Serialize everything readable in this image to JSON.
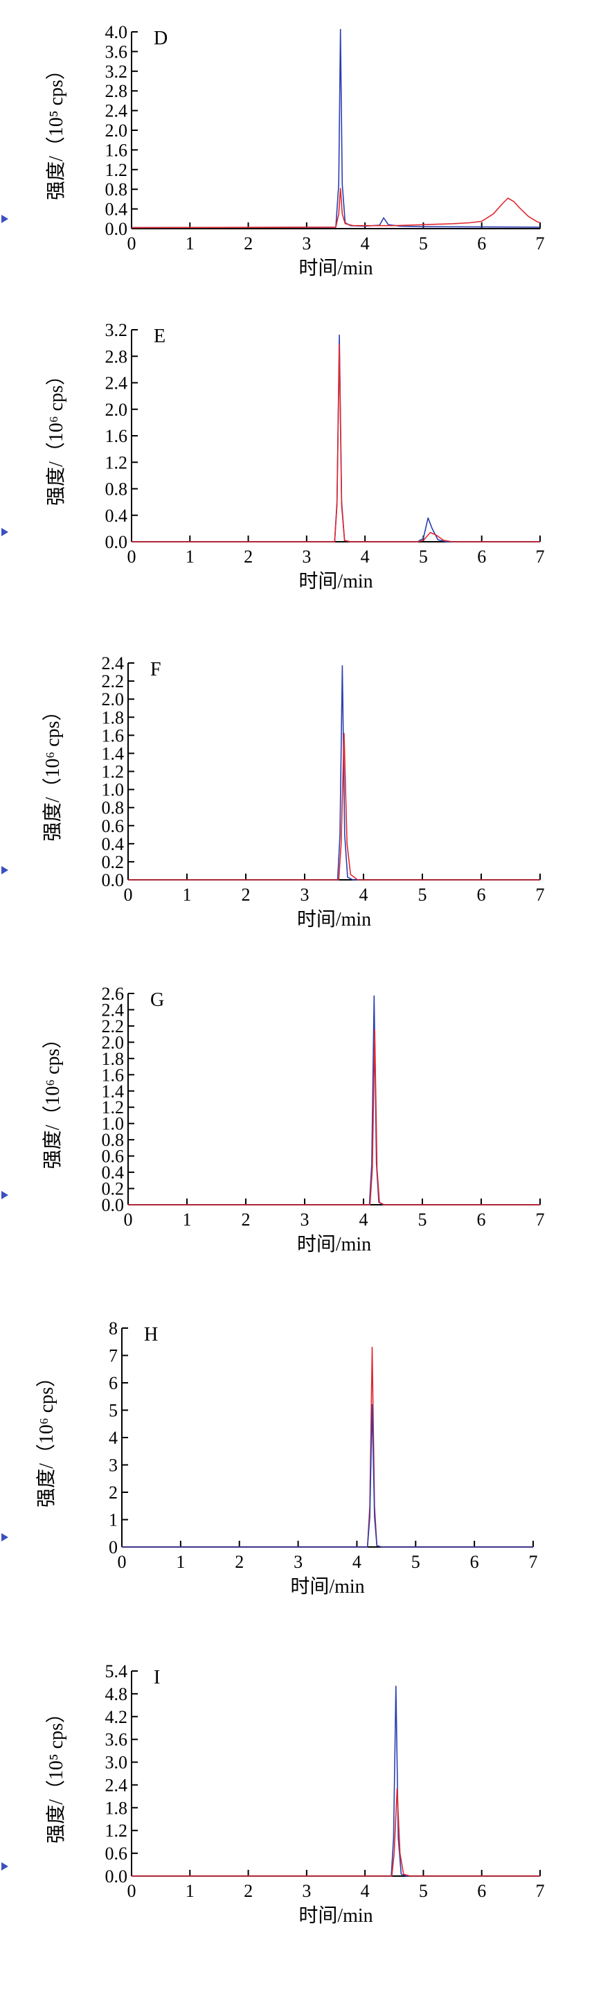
{
  "colors": {
    "blue": "#2b3fb0",
    "red": "#e0282e",
    "axis": "#000000",
    "marker": "#3a4fc0"
  },
  "charts": [
    {
      "id": "D",
      "chart_data": {
        "type": "line",
        "panel_label": "D",
        "xlabel": "时间/min",
        "ylabel": "强度/（10⁵ cps）",
        "xlim": [
          0,
          7
        ],
        "ylim": [
          0,
          4.0
        ],
        "xticks": [
          "0",
          "1",
          "2",
          "3",
          "4",
          "5",
          "6",
          "7"
        ],
        "yticks": [
          "0.0",
          "0.4",
          "0.8",
          "1.2",
          "1.6",
          "2.0",
          "2.4",
          "2.8",
          "3.2",
          "3.6",
          "4.0"
        ],
        "series": [
          {
            "color": "blue",
            "x": [
              0,
              3.5,
              3.55,
              3.58,
              3.61,
              3.66,
              3.75,
              4.0,
              4.25,
              4.32,
              4.4,
              4.6,
              5.0,
              7.0
            ],
            "y": [
              0.02,
              0.03,
              0.9,
              4.05,
              0.9,
              0.12,
              0.06,
              0.05,
              0.07,
              0.22,
              0.08,
              0.05,
              0.04,
              0.03
            ]
          },
          {
            "color": "red",
            "x": [
              0,
              3.5,
              3.55,
              3.58,
              3.61,
              3.66,
              3.8,
              4.0,
              4.5,
              5.0,
              5.5,
              5.8,
              6.0,
              6.2,
              6.35,
              6.45,
              6.55,
              6.65,
              6.8,
              6.95,
              7.0
            ],
            "y": [
              0.02,
              0.03,
              0.3,
              0.82,
              0.3,
              0.1,
              0.06,
              0.06,
              0.06,
              0.08,
              0.1,
              0.12,
              0.15,
              0.3,
              0.5,
              0.62,
              0.55,
              0.42,
              0.25,
              0.14,
              0.12
            ]
          }
        ]
      }
    },
    {
      "id": "E",
      "chart_data": {
        "type": "line",
        "panel_label": "E",
        "xlabel": "时间/min",
        "ylabel": "强度/（10⁶ cps）",
        "xlim": [
          0,
          7
        ],
        "ylim": [
          0,
          3.2
        ],
        "xticks": [
          "0",
          "1",
          "2",
          "3",
          "4",
          "5",
          "6",
          "7"
        ],
        "yticks": [
          "0.0",
          "0.4",
          "0.8",
          "1.2",
          "1.6",
          "2.0",
          "2.4",
          "2.8",
          "3.2"
        ],
        "series": [
          {
            "color": "blue",
            "x": [
              0,
              3.48,
              3.52,
              3.56,
              3.6,
              3.65,
              3.75,
              4.9,
              5.0,
              5.08,
              5.15,
              5.25,
              5.4,
              7.0
            ],
            "y": [
              0,
              0,
              0.6,
              3.12,
              0.6,
              0.02,
              0,
              0,
              0.05,
              0.36,
              0.2,
              0.03,
              0,
              0
            ]
          },
          {
            "color": "red",
            "x": [
              0,
              3.48,
              3.52,
              3.56,
              3.6,
              3.65,
              3.75,
              4.9,
              5.0,
              5.12,
              5.22,
              5.35,
              5.5,
              7.0
            ],
            "y": [
              0,
              0,
              0.55,
              2.98,
              0.55,
              0.02,
              0,
              0,
              0.02,
              0.14,
              0.1,
              0.02,
              0,
              0
            ]
          }
        ]
      }
    },
    {
      "id": "F",
      "chart_data": {
        "type": "line",
        "panel_label": "F",
        "xlabel": "时间/min",
        "ylabel": "强度/（10⁶ cps）",
        "xlim": [
          0,
          7
        ],
        "ylim": [
          0,
          2.4
        ],
        "xticks": [
          "0",
          "1",
          "2",
          "3",
          "4",
          "5",
          "6",
          "7"
        ],
        "yticks": [
          "0.0",
          "0.2",
          "0.4",
          "0.6",
          "0.8",
          "1.0",
          "1.2",
          "1.4",
          "1.6",
          "1.8",
          "2.0",
          "2.2",
          "2.4"
        ],
        "series": [
          {
            "color": "blue",
            "x": [
              0,
              3.56,
              3.6,
              3.64,
              3.68,
              3.73,
              3.82,
              7.0
            ],
            "y": [
              0,
              0,
              0.5,
              2.37,
              0.5,
              0.03,
              0,
              0
            ]
          },
          {
            "color": "red",
            "x": [
              0,
              3.58,
              3.62,
              3.67,
              3.72,
              3.78,
              3.9,
              7.0
            ],
            "y": [
              0,
              0,
              0.4,
              1.62,
              0.4,
              0.06,
              0,
              0
            ]
          }
        ]
      }
    },
    {
      "id": "G",
      "chart_data": {
        "type": "line",
        "panel_label": "G",
        "xlabel": "时间/min",
        "ylabel": "强度/（10⁶ cps）",
        "xlim": [
          0,
          7
        ],
        "ylim": [
          0,
          2.6
        ],
        "xticks": [
          "0",
          "1",
          "2",
          "3",
          "4",
          "5",
          "6",
          "7"
        ],
        "yticks": [
          "0.0",
          "0.2",
          "0.4",
          "0.6",
          "0.8",
          "1.0",
          "1.2",
          "1.4",
          "1.6",
          "1.8",
          "2.0",
          "2.2",
          "2.4",
          "2.6"
        ],
        "series": [
          {
            "color": "blue",
            "x": [
              0,
              4.1,
              4.14,
              4.18,
              4.22,
              4.26,
              4.34,
              7.0
            ],
            "y": [
              0,
              0,
              0.5,
              2.57,
              0.5,
              0.03,
              0,
              0
            ]
          },
          {
            "color": "red",
            "x": [
              0,
              4.11,
              4.15,
              4.19,
              4.23,
              4.27,
              4.35,
              7.0
            ],
            "y": [
              0,
              0,
              0.45,
              2.15,
              0.45,
              0.03,
              0,
              0
            ]
          }
        ]
      }
    },
    {
      "id": "H",
      "chart_data": {
        "type": "line",
        "panel_label": "H",
        "xlabel": "时间/min",
        "ylabel": "强度/（10⁶ cps）",
        "xlim": [
          0,
          7
        ],
        "ylim": [
          0,
          8
        ],
        "xticks": [
          "0",
          "1",
          "2",
          "3",
          "4",
          "5",
          "6",
          "7"
        ],
        "yticks": [
          "0",
          "1",
          "2",
          "3",
          "4",
          "5",
          "6",
          "7",
          "8"
        ],
        "series": [
          {
            "color": "red",
            "x": [
              0,
              4.18,
              4.22,
              4.26,
              4.3,
              4.34,
              4.42,
              7.0
            ],
            "y": [
              0,
              0,
              1.5,
              7.3,
              1.5,
              0.05,
              0,
              0
            ]
          },
          {
            "color": "blue",
            "x": [
              0,
              4.18,
              4.22,
              4.26,
              4.3,
              4.34,
              4.42,
              7.0
            ],
            "y": [
              0,
              0,
              1.1,
              5.2,
              1.1,
              0.05,
              0,
              0
            ]
          }
        ]
      }
    },
    {
      "id": "I",
      "chart_data": {
        "type": "line",
        "panel_label": "I",
        "xlabel": "时间/min",
        "ylabel": "强度/（10⁵ cps）",
        "xlim": [
          0,
          7
        ],
        "ylim": [
          0,
          5.4
        ],
        "xticks": [
          "0",
          "1",
          "2",
          "3",
          "4",
          "5",
          "6",
          "7"
        ],
        "yticks": [
          "0.0",
          "0.6",
          "1.2",
          "1.8",
          "2.4",
          "3.0",
          "3.6",
          "4.2",
          "4.8",
          "5.4"
        ],
        "series": [
          {
            "color": "blue",
            "x": [
              0,
              4.45,
              4.49,
              4.53,
              4.57,
              4.62,
              4.72,
              7.0
            ],
            "y": [
              0,
              0,
              1.0,
              5.0,
              1.0,
              0.05,
              0,
              0
            ]
          },
          {
            "color": "red",
            "x": [
              0,
              4.46,
              4.5,
              4.55,
              4.6,
              4.66,
              4.78,
              7.0
            ],
            "y": [
              0,
              0,
              0.6,
              2.3,
              0.6,
              0.05,
              0,
              0
            ]
          }
        ]
      }
    }
  ]
}
